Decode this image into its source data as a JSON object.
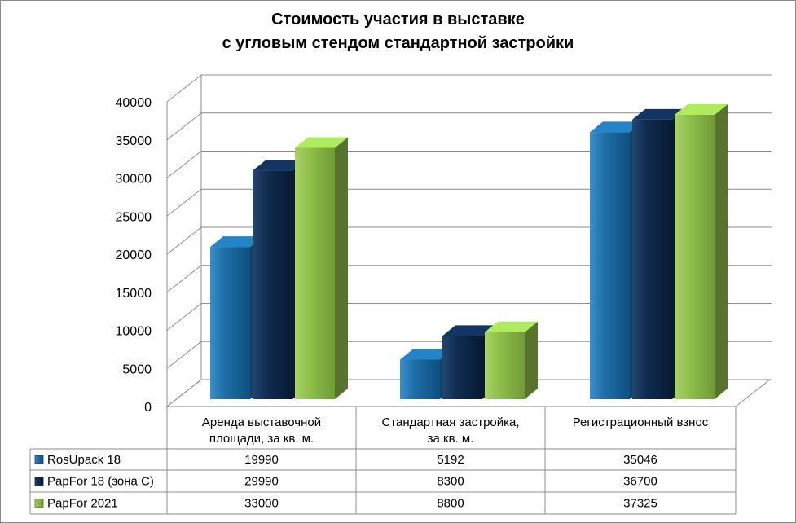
{
  "chart_data": {
    "type": "bar",
    "title": [
      "Стоимость участия в выставке",
      "с угловым стендом стандартной застройки"
    ],
    "categories": [
      [
        "Аренда выставочной",
        "площади, за кв. м."
      ],
      [
        "Стандартная застройка,",
        "за кв. м."
      ],
      [
        "Регистрационный взнос"
      ]
    ],
    "series": [
      {
        "name": "RosUpack 18",
        "values": [
          19990,
          5192,
          35046
        ],
        "color": "#1c6aa0"
      },
      {
        "name": "PapFor 18 (зона С)",
        "values": [
          29990,
          8300,
          36700
        ],
        "color": "#0e2a4f"
      },
      {
        "name": "PapFor 2021",
        "values": [
          33000,
          8800,
          37325
        ],
        "color": "#8dbb4a"
      }
    ],
    "yticks": [
      "0",
      "5000",
      "10000",
      "15000",
      "20000",
      "25000",
      "30000",
      "35000",
      "40000"
    ],
    "ylim": [
      0,
      40000
    ],
    "gridlines": true,
    "data_table": true
  }
}
